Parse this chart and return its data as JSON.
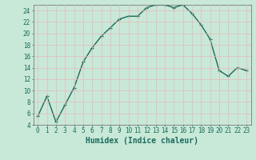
{
  "x": [
    0,
    1,
    2,
    3,
    4,
    5,
    6,
    7,
    8,
    9,
    10,
    11,
    12,
    13,
    14,
    15,
    16,
    17,
    18,
    19,
    20,
    21,
    22,
    23
  ],
  "y": [
    5.5,
    9.0,
    4.5,
    7.5,
    10.5,
    15.0,
    17.5,
    19.5,
    21.0,
    22.5,
    23.0,
    23.0,
    24.5,
    25.0,
    25.0,
    24.5,
    25.0,
    23.5,
    21.5,
    19.0,
    13.5,
    12.5,
    14.0,
    13.5
  ],
  "line_color": "#1a6b5a",
  "marker": "+",
  "marker_size": 3,
  "bg_color": "#c8e8d8",
  "grid_color": "#e8b8b8",
  "xlabel": "Humidex (Indice chaleur)",
  "ylim": [
    4,
    25
  ],
  "xlim": [
    -0.5,
    23.5
  ],
  "yticks": [
    4,
    6,
    8,
    10,
    12,
    14,
    16,
    18,
    20,
    22,
    24
  ],
  "xticks": [
    0,
    1,
    2,
    3,
    4,
    5,
    6,
    7,
    8,
    9,
    10,
    11,
    12,
    13,
    14,
    15,
    16,
    17,
    18,
    19,
    20,
    21,
    22,
    23
  ],
  "xlabel_fontsize": 7,
  "tick_fontsize": 5.5,
  "line_width": 1.0
}
